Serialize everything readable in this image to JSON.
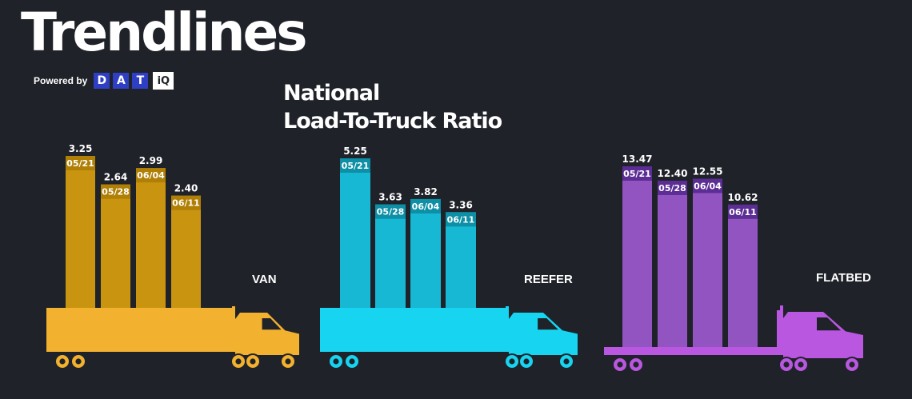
{
  "header": {
    "title": "Trendlines",
    "powered_by": "Powered by",
    "logo_letters": [
      "D",
      "A",
      "T"
    ],
    "logo_suffix": "iQ"
  },
  "chart_data": {
    "type": "bar",
    "title_line1": "National",
    "title_line2": "Load-To-Truck Ratio",
    "categories": [
      "05/21",
      "05/28",
      "06/04",
      "06/11"
    ],
    "series": [
      {
        "name": "VAN",
        "values": [
          3.25,
          2.64,
          2.99,
          2.4
        ],
        "labels": [
          "3.25",
          "2.64",
          "2.99",
          "2.40"
        ],
        "color": "#f2b12e",
        "bar_color": "#c9940f",
        "tag_color": "#b07f06"
      },
      {
        "name": "REEFER",
        "values": [
          5.25,
          3.63,
          3.82,
          3.36
        ],
        "labels": [
          "5.25",
          "3.63",
          "3.82",
          "3.36"
        ],
        "color": "#17d4f0",
        "bar_color": "#16b8d4",
        "tag_color": "#0d8fa6"
      },
      {
        "name": "FLATBED",
        "values": [
          13.47,
          12.4,
          12.55,
          10.62
        ],
        "labels": [
          "13.47",
          "12.40",
          "12.55",
          "10.62"
        ],
        "color": "#b957e0",
        "bar_color": "#9154c0",
        "tag_color": "#5c2e95"
      }
    ],
    "legend": "none",
    "grid": false
  }
}
